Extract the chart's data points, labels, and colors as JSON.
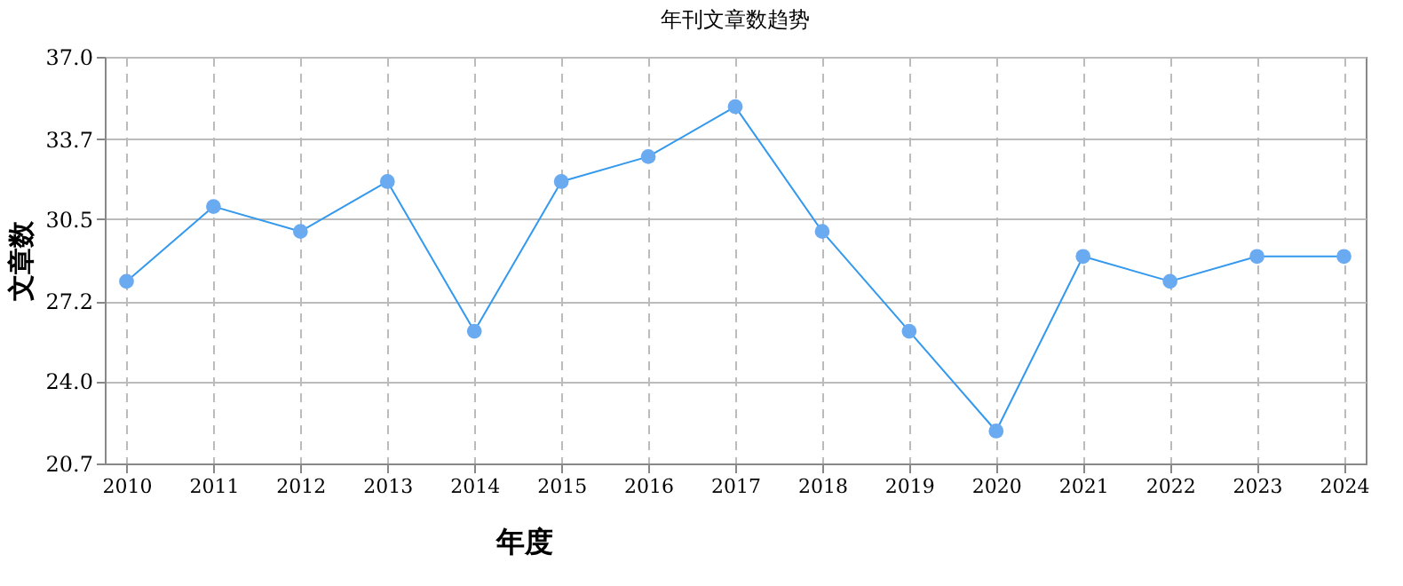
{
  "chart_data": {
    "type": "line",
    "title": "年刊文章数趋势",
    "xlabel": "年度",
    "ylabel": "文章数",
    "categories": [
      "2010",
      "2011",
      "2012",
      "2013",
      "2014",
      "2015",
      "2016",
      "2017",
      "2018",
      "2019",
      "2020",
      "2021",
      "2022",
      "2023",
      "2024"
    ],
    "series": [
      {
        "color": "#3399ee",
        "values": [
          28,
          31,
          30,
          32,
          26,
          32,
          33,
          35,
          30,
          26,
          22,
          29,
          28,
          29,
          29
        ]
      }
    ],
    "ylim": [
      20.7,
      37.0
    ],
    "yticks": [
      {
        "value": 20.7,
        "label": "20.7"
      },
      {
        "value": 24.0,
        "label": "24.0"
      },
      {
        "value": 27.2,
        "label": "27.2"
      },
      {
        "value": 30.5,
        "label": "30.5"
      },
      {
        "value": 33.7,
        "label": "33.7"
      },
      {
        "value": 37.0,
        "label": "37.0"
      }
    ],
    "grid": true,
    "marker": "circle",
    "line_style": "solid"
  }
}
